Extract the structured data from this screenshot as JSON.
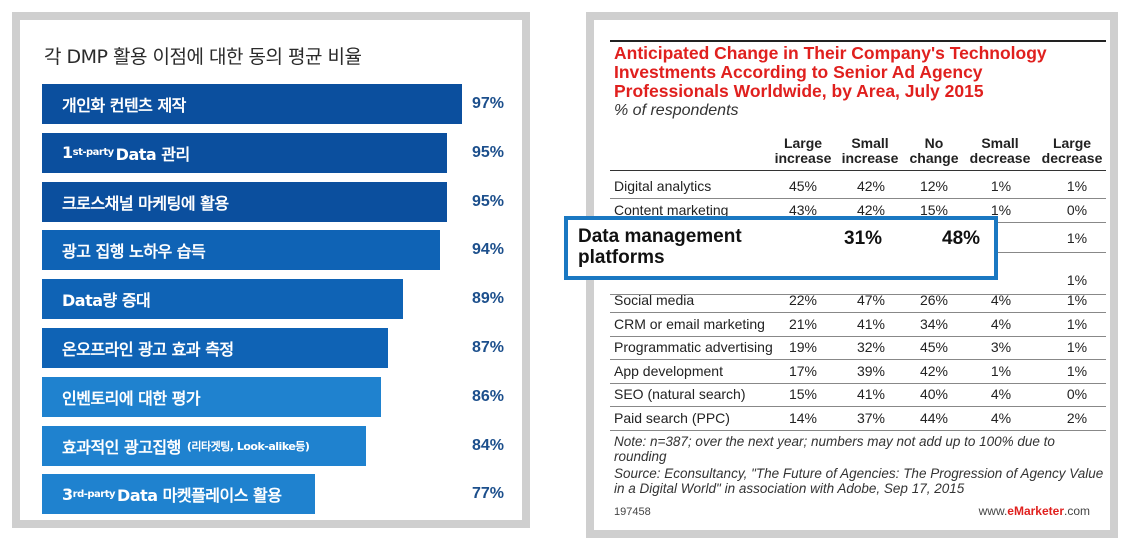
{
  "left": {
    "title": "각 DMP 활용 이점에 대한 동의 평균 비율",
    "colors": {
      "bar_dark": "#0b4f9e",
      "bar_mid": "#0f63b5",
      "bar_light": "#1f82cf",
      "value_text": "#1c4f8c"
    }
  },
  "right": {
    "title": "Anticipated Change in Their Company's Technology Investments According to Senior Ad Agency Professionals Worldwide, by Area, July 2015",
    "subtitle": "% of respondents",
    "columns": [
      "Large increase",
      "Small increase",
      "No change",
      "Small decrease",
      "Large decrease"
    ],
    "rows_top": [
      {
        "label": "Digital analytics",
        "values": [
          "45%",
          "42%",
          "12%",
          "1%",
          "1%"
        ]
      },
      {
        "label": "Content marketing",
        "values": [
          "43%",
          "42%",
          "15%",
          "1%",
          "0%"
        ]
      }
    ],
    "partial_visible": [
      {
        "value": "1%"
      },
      {
        "value": "1%"
      }
    ],
    "rows_bottom": [
      {
        "label": "Social media",
        "values": [
          "22%",
          "47%",
          "26%",
          "4%",
          "1%"
        ]
      },
      {
        "label": "CRM or email marketing",
        "values": [
          "21%",
          "41%",
          "34%",
          "4%",
          "1%"
        ]
      },
      {
        "label": "Programmatic advertising",
        "values": [
          "19%",
          "32%",
          "45%",
          "3%",
          "1%"
        ]
      },
      {
        "label": "App development",
        "values": [
          "17%",
          "39%",
          "42%",
          "1%",
          "1%"
        ]
      },
      {
        "label": "SEO (natural search)",
        "values": [
          "15%",
          "41%",
          "40%",
          "4%",
          "0%"
        ]
      },
      {
        "label": "Paid search (PPC)",
        "values": [
          "14%",
          "37%",
          "44%",
          "4%",
          "2%"
        ]
      }
    ],
    "highlight": {
      "label_line1": "Data management",
      "label_line2": "platforms",
      "value1": "31%",
      "value2": "48%"
    },
    "note": "Note: n=387; over the next year; numbers may not add up to 100% due to rounding",
    "source": "Source: Econsultancy, \"The Future of Agencies: The Progression of Agency Value in a Digital World\" in association with Adobe, Sep 17, 2015",
    "footer_id": "197458",
    "footer_site_prefix": "www.",
    "footer_site_brand": "eMarketer",
    "footer_site_suffix": ".com",
    "title_color": "#e0201e",
    "highlight_color": "#1a78c2"
  },
  "chart_data": {
    "type": "bar",
    "orientation": "horizontal",
    "title": "각 DMP 활용 이점에 대한 동의 평균 비율",
    "categories": [
      "개인화 컨텐츠 제작",
      "1st-party Data 관리",
      "크로스채널 마케팅에 활용",
      "광고 집행 노하우 습득",
      "Data량 증대",
      "온오프라인 광고 효과 측정",
      "인벤토리에 대한 평가",
      "효과적인 광고집행 (리타겟팅, Look-alike등)",
      "3rd-party Data 마켓플레이스 활용"
    ],
    "values": [
      97,
      95,
      95,
      94,
      89,
      87,
      86,
      84,
      77
    ],
    "value_labels": [
      "97%",
      "95%",
      "95%",
      "94%",
      "89%",
      "87%",
      "86%",
      "84%",
      "77%"
    ],
    "unit": "%",
    "xlim": [
      0,
      100
    ]
  }
}
